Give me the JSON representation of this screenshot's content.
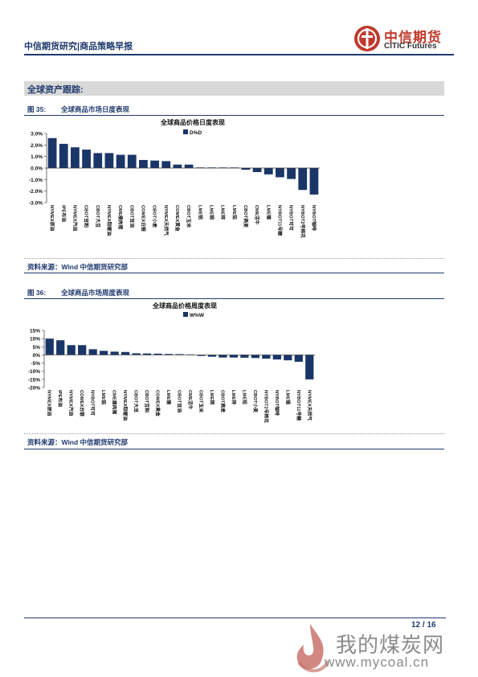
{
  "header": {
    "title": "中信期货研究|商品策略早报",
    "logo_cn": "中信期货",
    "logo_en": "CITIC Futures"
  },
  "section_title": "全球资产跟踪:",
  "figures": [
    {
      "label": "图 35:",
      "caption": "全球商品市场日度表现",
      "source": "资料来源：Wind  中信期货研究部"
    },
    {
      "label": "图 36:",
      "caption": "全球商品市场周度表现",
      "source": "资料来源：Wind  中信期货研究部"
    }
  ],
  "chart_data": [
    {
      "type": "bar",
      "title": "全球商品价格日度表现",
      "series": [
        {
          "name": "D%D",
          "values": [
            2.6,
            2.1,
            1.8,
            1.6,
            1.3,
            1.3,
            1.15,
            1.15,
            0.7,
            0.65,
            0.6,
            0.3,
            0.3,
            0.05,
            0.05,
            0.05,
            0.05,
            -0.15,
            -0.35,
            -0.55,
            -0.8,
            -0.95,
            -1.9,
            -2.3
          ]
        }
      ],
      "categories": [
        "NYMEX原油",
        "IPE布油",
        "NYMEX汽油",
        "CBOT豆粕",
        "CBOT大豆",
        "NYMEX取暖油",
        "CME瘦肉猪",
        "CBOT豆油",
        "COMEX白银",
        "CBOT小麦",
        "NYMEX天然气",
        "COMEX黄金",
        "CBOT玉米",
        "LME铝",
        "LME铜",
        "LME锌",
        "LME铅",
        "CBOT燕麦",
        "CME活牛",
        "LME镍",
        "NYBOT11号糖",
        "NYBOT可可",
        "NYBOT2号棉花",
        "NYBOT咖啡"
      ],
      "ylim": [
        -3.0,
        3.0
      ],
      "yticks": [
        "3.0%",
        "2.0%",
        "1.0%",
        "0.0%",
        "-1.0%",
        "-2.0%",
        "-3.0%"
      ],
      "legend": "top-center",
      "color": "#1a3668"
    },
    {
      "type": "bar",
      "title": "全球商品价格周度表现",
      "series": [
        {
          "name": "W%W",
          "values": [
            10,
            9,
            6,
            6,
            3.5,
            2.5,
            2,
            1.8,
            1,
            0.9,
            0.8,
            0.6,
            0.5,
            0.3,
            -0.6,
            -1.1,
            -1.6,
            -1.6,
            -1.7,
            -1.9,
            -2.3,
            -2.8,
            -3.3,
            -4.2,
            -15
          ]
        }
      ],
      "categories": [
        "NYMEX原油",
        "IPE布油",
        "NYMEX汽油",
        "COMEX白银",
        "NYBOT可可",
        "LME铝",
        "CME瘦肉猪",
        "NYMEX取暖油",
        "CBOT大豆",
        "CBOT豆粕",
        "COMEX黄金",
        "LME镍",
        "CBOT豆油",
        "CME活牛",
        "CBOT玉米",
        "LME铜",
        "CBOT燕麦",
        "LME锌",
        "LME铅",
        "CBOT小麦",
        "NYBOT2号棉花",
        "NYBOT咖啡",
        "LME锡",
        "NYBOT11号糖",
        "NYMEX天然气"
      ],
      "ylim": [
        -20,
        15
      ],
      "yticks": [
        "15%",
        "10%",
        "5%",
        "0%",
        "-5%",
        "-10%",
        "-15%",
        "-20%"
      ],
      "legend": "top-center",
      "color": "#1a3668"
    }
  ],
  "footer": {
    "page": "12 / 16",
    "watermark_cn": "我的煤炭网",
    "watermark_url": "www.mycoal.cn"
  }
}
